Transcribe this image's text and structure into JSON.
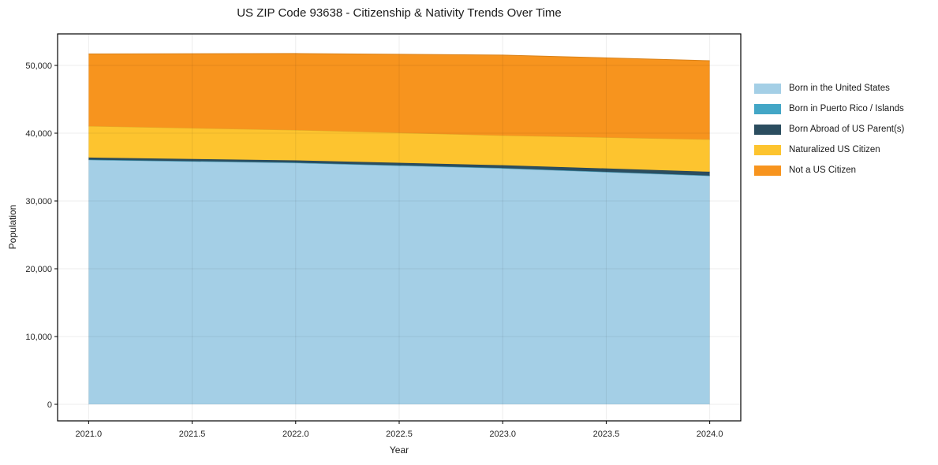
{
  "title": "US ZIP Code 93638 - Citizenship & Nativity Trends Over Time",
  "chart_data": {
    "type": "area",
    "stacked": true,
    "title": "US ZIP Code 93638 - Citizenship & Nativity Trends Over Time",
    "xlabel": "Year",
    "ylabel": "Population",
    "x": [
      2021,
      2022,
      2023,
      2024
    ],
    "series": [
      {
        "name": "Born in the United States",
        "color": "#a4cfe6",
        "values": [
          36050,
          35600,
          34800,
          33700
        ]
      },
      {
        "name": "Born in Puerto Rico / Islands",
        "color": "#43a6c6",
        "values": [
          60,
          60,
          60,
          60
        ]
      },
      {
        "name": "Born Abroad of US Parent(s)",
        "color": "#2b4d5f",
        "values": [
          300,
          330,
          420,
          550
        ]
      },
      {
        "name": "Naturalized US Citizen",
        "color": "#fdc42f",
        "values": [
          4640,
          4480,
          4380,
          4770
        ]
      },
      {
        "name": "Not a US Citizen",
        "color": "#f7941e",
        "values": [
          10650,
          11280,
          11860,
          11620
        ]
      }
    ],
    "xticks": {
      "values": [
        2021,
        2021.5,
        2022,
        2022.5,
        2023,
        2023.5,
        2024
      ],
      "labels": [
        "2021.0",
        "2021.5",
        "2022.0",
        "2022.5",
        "2023.0",
        "2023.5",
        "2024.0"
      ]
    },
    "yticks": {
      "values": [
        0,
        10000,
        20000,
        30000,
        40000,
        50000
      ],
      "labels": [
        "0",
        "10,000",
        "20,000",
        "30,000",
        "40,000",
        "50,000"
      ]
    },
    "xlim": [
      2020.85,
      2024.15
    ],
    "ylim": [
      -2440,
      54650
    ],
    "grid": true,
    "legend_position": "right"
  }
}
